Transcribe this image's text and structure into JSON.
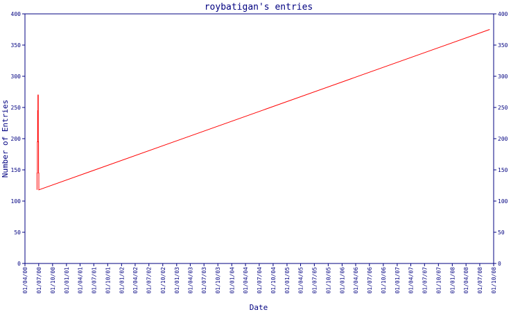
{
  "chart_data": {
    "type": "line",
    "title": "roybatigan's entries",
    "xlabel": "Date",
    "ylabel": "Number of Entries",
    "ylim": [
      0,
      400
    ],
    "y_ticks": [
      "0",
      "50",
      "100",
      "150",
      "200",
      "250",
      "300",
      "350",
      "400"
    ],
    "x_ticks": [
      "01/04/00",
      "01/07/00",
      "01/10/00",
      "01/01/01",
      "01/04/01",
      "01/07/01",
      "01/10/01",
      "01/01/02",
      "01/04/02",
      "01/07/02",
      "01/10/02",
      "01/01/03",
      "01/04/03",
      "01/07/03",
      "01/10/03",
      "01/01/04",
      "01/04/04",
      "01/07/04",
      "01/10/04",
      "01/01/05",
      "01/04/05",
      "01/07/05",
      "01/10/05",
      "01/01/06",
      "01/04/06",
      "01/07/06",
      "01/10/06",
      "01/01/07",
      "01/04/07",
      "01/07/07",
      "01/10/07",
      "01/01/08",
      "01/04/08",
      "01/07/08",
      "01/10/08"
    ],
    "series": [
      {
        "color": "#ff0000",
        "points": [
          [
            "2000-06-20",
            118
          ],
          [
            "2000-06-20",
            145
          ],
          [
            "2000-06-22",
            145
          ],
          [
            "2000-06-22",
            195
          ],
          [
            "2000-06-24",
            195
          ],
          [
            "2000-06-24",
            245
          ],
          [
            "2000-06-26",
            245
          ],
          [
            "2000-06-26",
            270
          ],
          [
            "2000-06-28",
            270
          ],
          [
            "2000-06-28",
            195
          ],
          [
            "2000-06-30",
            195
          ],
          [
            "2000-06-30",
            145
          ],
          [
            "2000-07-02",
            145
          ],
          [
            "2000-07-02",
            118
          ],
          [
            "2008-09-05",
            375
          ]
        ]
      }
    ],
    "axis_color": "#000080",
    "grid": false
  }
}
